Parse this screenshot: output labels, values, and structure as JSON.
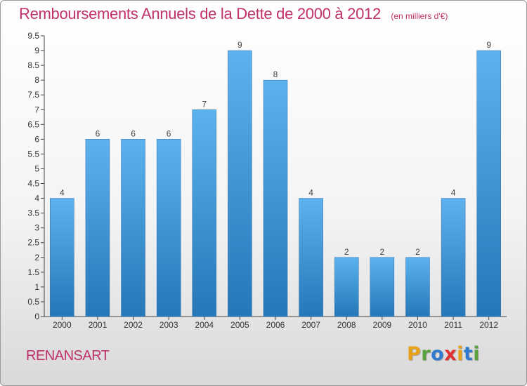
{
  "header": {
    "title": "Remboursements Annuels de la Dette de 2000 à 2012",
    "subtitle": "(en milliers d'€)"
  },
  "footer": {
    "commune": "RENANSART",
    "logo_text": "Proxiti",
    "logo_colors": [
      "#e8a21a",
      "#5aa23c",
      "#2f7bd0",
      "#e03030",
      "#e8a21a",
      "#2f7bd0",
      "#5aa23c"
    ]
  },
  "chart_data": {
    "type": "bar",
    "title": "Remboursements Annuels de la Dette de 2000 à 2012",
    "xlabel": "",
    "ylabel": "",
    "categories": [
      "2000",
      "2001",
      "2002",
      "2003",
      "2004",
      "2005",
      "2006",
      "2007",
      "2008",
      "2009",
      "2010",
      "2011",
      "2012"
    ],
    "values": [
      4,
      6,
      6,
      6,
      7,
      9,
      8,
      4,
      2,
      2,
      2,
      4,
      9
    ],
    "data_labels": [
      "4",
      "6",
      "6",
      "6",
      "7",
      "9",
      "8",
      "4",
      "2",
      "2",
      "2",
      "4",
      "9"
    ],
    "yticks": [
      0,
      0.5,
      1,
      1.5,
      2,
      2.5,
      3,
      3.5,
      4,
      4.5,
      5,
      5.5,
      6,
      6.5,
      7,
      7.5,
      8,
      8.5,
      9,
      9.5
    ],
    "ytick_labels": [
      "0",
      "0.5",
      "1",
      "1.5",
      "2",
      "2.5",
      "3",
      "3.5",
      "4",
      "4.5",
      "5",
      "5.5",
      "6",
      "6.5",
      "7",
      "7.5",
      "8",
      "8.5",
      "9",
      "9.5"
    ],
    "ylim": [
      0,
      9.5
    ],
    "grid": false,
    "bar_color": "#3d8fd6"
  }
}
